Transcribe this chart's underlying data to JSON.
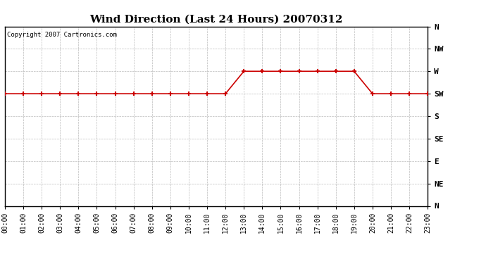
{
  "title": "Wind Direction (Last 24 Hours) 20070312",
  "copyright_text": "Copyright 2007 Cartronics.com",
  "background_color": "#ffffff",
  "plot_bg_color": "#ffffff",
  "grid_color": "#bbbbbb",
  "line_color": "#cc0000",
  "marker_color": "#cc0000",
  "x_labels": [
    "00:00",
    "01:00",
    "02:00",
    "03:00",
    "04:00",
    "05:00",
    "06:00",
    "07:00",
    "08:00",
    "09:00",
    "10:00",
    "11:00",
    "12:00",
    "13:00",
    "14:00",
    "15:00",
    "16:00",
    "17:00",
    "18:00",
    "19:00",
    "20:00",
    "21:00",
    "22:00",
    "23:00"
  ],
  "y_tick_labels": [
    "N",
    "NW",
    "W",
    "SW",
    "S",
    "SE",
    "E",
    "NE",
    "N"
  ],
  "y_tick_positions": [
    8,
    7,
    6,
    5,
    4,
    3,
    2,
    1,
    0
  ],
  "data_hours": [
    0,
    1,
    2,
    3,
    4,
    5,
    6,
    7,
    8,
    9,
    10,
    11,
    12,
    13,
    14,
    15,
    16,
    17,
    18,
    19,
    20,
    21,
    22,
    23
  ],
  "data_direction": [
    5,
    5,
    5,
    5,
    5,
    5,
    5,
    5,
    5,
    5,
    5,
    5,
    5,
    6,
    6,
    6,
    6,
    6,
    6,
    6,
    5,
    5,
    5,
    5
  ],
  "xlim": [
    0,
    23
  ],
  "ylim": [
    0,
    8
  ],
  "title_fontsize": 11,
  "tick_fontsize": 7,
  "ytick_fontsize": 8
}
